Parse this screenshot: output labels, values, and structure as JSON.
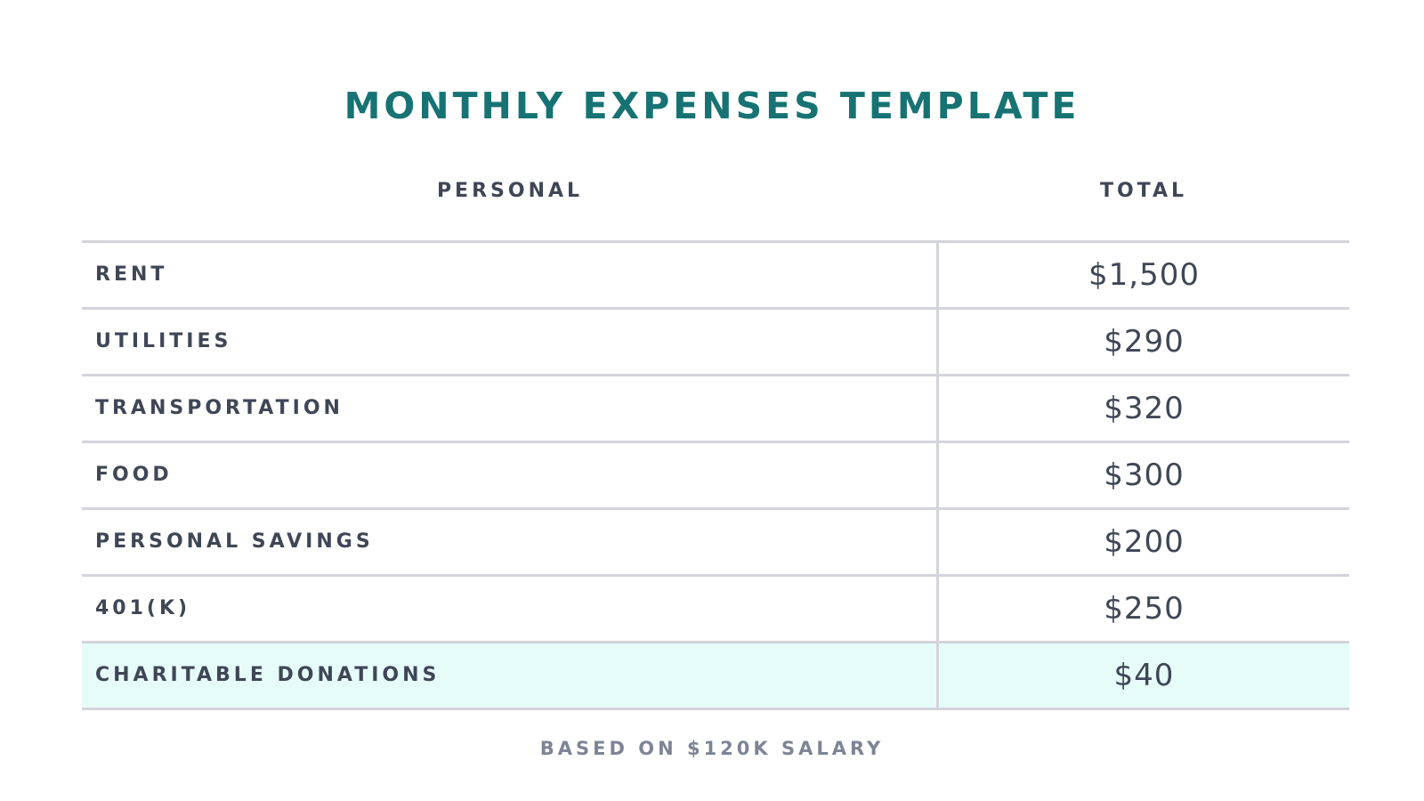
{
  "title": "MONTHLY EXPENSES TEMPLATE",
  "columns": {
    "personal": "PERSONAL",
    "total": "TOTAL"
  },
  "rows": [
    {
      "label": "RENT",
      "value": "$1,500"
    },
    {
      "label": "UTILITIES",
      "value": "$290"
    },
    {
      "label": "TRANSPORTATION",
      "value": "$320"
    },
    {
      "label": "FOOD",
      "value": "$300"
    },
    {
      "label": "PERSONAL SAVINGS",
      "value": "$200"
    },
    {
      "label": "401(K)",
      "value": "$250"
    },
    {
      "label": "CHARITABLE DONATIONS",
      "value": "$40",
      "highlighted": true
    }
  ],
  "footnote": "BASED ON $120K SALARY",
  "colors": {
    "title": "#177373",
    "text": "#3f4656",
    "rule": "#d3d4dc",
    "highlight_row": "#e6fcf9",
    "footnote": "#7e8496"
  }
}
